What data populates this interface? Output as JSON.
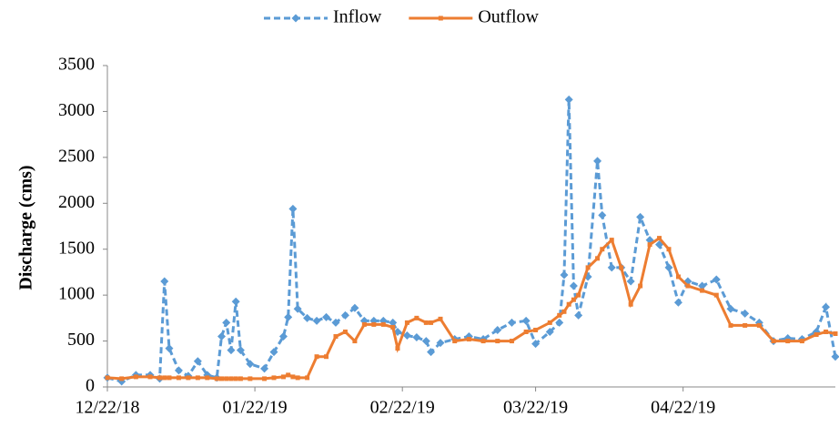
{
  "chart_data": {
    "type": "line",
    "y_label": "Discharge (cms)",
    "x": [
      "12/22/18",
      "12/25/18",
      "12/28/18",
      "12/31/18",
      "01/02/19",
      "01/03/19",
      "01/04/19",
      "01/06/19",
      "01/08/19",
      "01/10/19",
      "01/12/19",
      "01/14/19",
      "01/15/19",
      "01/16/19",
      "01/17/19",
      "01/18/19",
      "01/19/19",
      "01/21/19",
      "01/24/19",
      "01/26/19",
      "01/28/19",
      "01/29/19",
      "01/30/19",
      "01/31/19",
      "02/02/19",
      "02/04/19",
      "02/06/19",
      "02/08/19",
      "02/10/19",
      "02/12/19",
      "02/14/19",
      "02/16/19",
      "02/18/19",
      "02/20/19",
      "02/21/19",
      "02/23/19",
      "02/25/19",
      "02/27/19",
      "02/28/19",
      "03/02/19",
      "03/05/19",
      "03/08/19",
      "03/11/19",
      "03/14/19",
      "03/17/19",
      "03/20/19",
      "03/22/19",
      "03/25/19",
      "03/27/19",
      "03/28/19",
      "03/29/19",
      "03/30/19",
      "03/31/19",
      "04/02/19",
      "04/04/19",
      "04/05/19",
      "04/07/19",
      "04/09/19",
      "04/11/19",
      "04/13/19",
      "04/15/19",
      "04/17/19",
      "04/19/19",
      "04/21/19",
      "04/23/19",
      "04/26/19",
      "04/29/19",
      "05/02/19",
      "05/05/19",
      "05/08/19",
      "05/11/19",
      "05/14/19",
      "05/17/19",
      "05/20/19",
      "05/22/19",
      "05/24/19"
    ],
    "series": [
      {
        "name": "Inflow",
        "color": "#5b9bd5",
        "dashed": true,
        "marker": "diamond",
        "values": [
          100,
          60,
          130,
          130,
          90,
          1150,
          420,
          180,
          120,
          280,
          130,
          100,
          550,
          700,
          400,
          930,
          400,
          250,
          200,
          380,
          550,
          760,
          1940,
          850,
          750,
          720,
          760,
          700,
          780,
          860,
          720,
          720,
          720,
          700,
          600,
          560,
          540,
          500,
          380,
          480,
          520,
          550,
          520,
          620,
          700,
          720,
          470,
          600,
          700,
          1220,
          3130,
          1100,
          780,
          1200,
          2460,
          1870,
          1300,
          1300,
          1150,
          1850,
          1600,
          1550,
          1300,
          920,
          1150,
          1100,
          1170,
          850,
          800,
          700,
          500,
          530,
          520,
          600,
          870,
          330
        ]
      },
      {
        "name": "Outflow",
        "color": "#ed7d31",
        "dashed": false,
        "marker": "square",
        "values": [
          100,
          90,
          110,
          110,
          100,
          100,
          100,
          100,
          100,
          100,
          100,
          90,
          90,
          90,
          90,
          90,
          90,
          90,
          90,
          100,
          110,
          130,
          110,
          100,
          100,
          330,
          330,
          550,
          600,
          500,
          680,
          680,
          680,
          650,
          420,
          700,
          750,
          700,
          700,
          740,
          500,
          520,
          500,
          500,
          500,
          600,
          620,
          700,
          780,
          820,
          900,
          950,
          1000,
          1300,
          1400,
          1500,
          1600,
          1300,
          900,
          1100,
          1550,
          1620,
          1500,
          1200,
          1100,
          1050,
          1000,
          670,
          670,
          670,
          500,
          500,
          500,
          570,
          600,
          580
        ]
      }
    ],
    "xlim": [
      "12/22/18",
      "05/24/19"
    ],
    "xticks": [
      "12/22/18",
      "01/22/19",
      "02/22/19",
      "03/22/19",
      "04/22/19"
    ],
    "ylim": [
      0,
      3500
    ],
    "yticks": [
      0,
      500,
      1000,
      1500,
      2000,
      2500,
      3000,
      3500
    ],
    "grid": false,
    "legend": "top"
  }
}
